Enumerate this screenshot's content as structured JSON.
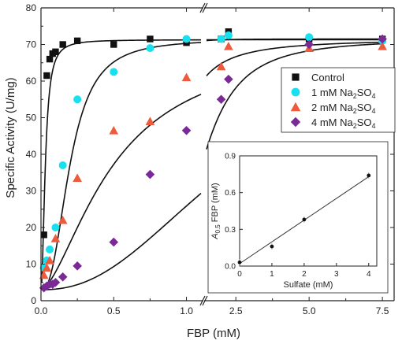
{
  "chart_data": [
    {
      "type": "scatter",
      "xlabel": "FBP (mM)",
      "ylabel": "Specific Activity (U/mg)",
      "ylim": [
        0,
        80
      ],
      "x_break": {
        "left_range": [
          0,
          1.1
        ],
        "right_range": [
          1.5,
          7.9
        ]
      },
      "x_tick_labels": [
        "0.0",
        "0.5",
        "1.0",
        "2.5",
        "5.0",
        "7.5"
      ],
      "y_tick_labels": [
        "0",
        "10",
        "20",
        "30",
        "40",
        "50",
        "60",
        "70",
        "80"
      ],
      "grid": false,
      "legend_position": "right",
      "series": [
        {
          "name": "Control",
          "marker": "square",
          "color": "#111111",
          "points": [
            [
              0.02,
              18
            ],
            [
              0.04,
              61.5
            ],
            [
              0.06,
              66
            ],
            [
              0.08,
              67.5
            ],
            [
              0.1,
              68
            ],
            [
              0.15,
              70
            ],
            [
              0.25,
              71
            ],
            [
              0.5,
              70
            ],
            [
              0.75,
              71.5
            ],
            [
              1.0,
              70.5
            ],
            [
              2.0,
              71.5
            ],
            [
              2.25,
              73.5
            ],
            [
              5.0,
              71.5
            ],
            [
              7.5,
              71.5
            ]
          ],
          "fit": {
            "vmax": 71.3,
            "k": 0.03,
            "n": 2.0,
            "v0": 3
          }
        },
        {
          "name": "1 mM Na2SO4",
          "marker": "circle",
          "color": "#18e0ee",
          "points": [
            [
              0.02,
              9
            ],
            [
              0.04,
              11
            ],
            [
              0.06,
              14
            ],
            [
              0.1,
              20
            ],
            [
              0.15,
              37
            ],
            [
              0.25,
              55
            ],
            [
              0.5,
              62.5
            ],
            [
              0.75,
              69
            ],
            [
              1.0,
              71.5
            ],
            [
              2.0,
              71.5
            ],
            [
              2.25,
              72.5
            ],
            [
              5.0,
              72
            ],
            [
              7.5,
              71
            ]
          ],
          "fit": {
            "vmax": 71.5,
            "k": 0.2,
            "n": 2.5,
            "v0": 3
          }
        },
        {
          "name": "2 mM Na2SO4",
          "marker": "triangle",
          "color": "#ee5a3c",
          "points": [
            [
              0.02,
              7
            ],
            [
              0.04,
              9
            ],
            [
              0.06,
              11
            ],
            [
              0.1,
              17
            ],
            [
              0.15,
              22
            ],
            [
              0.25,
              33.5
            ],
            [
              0.5,
              46.5
            ],
            [
              0.75,
              49
            ],
            [
              1.0,
              61
            ],
            [
              2.0,
              64
            ],
            [
              2.25,
              69.5
            ],
            [
              5.0,
              69
            ],
            [
              7.5,
              69.5
            ]
          ],
          "fit": {
            "vmax": 71.5,
            "k": 0.5,
            "n": 1.6,
            "v0": 3
          }
        },
        {
          "name": "4 mM Na2SO4",
          "marker": "diamond",
          "color": "#7a2a96",
          "points": [
            [
              0.02,
              3.5
            ],
            [
              0.04,
              4
            ],
            [
              0.06,
              4.5
            ],
            [
              0.08,
              4.5
            ],
            [
              0.1,
              5
            ],
            [
              0.15,
              6.5
            ],
            [
              0.25,
              9.5
            ],
            [
              0.5,
              16
            ],
            [
              0.75,
              34.5
            ],
            [
              1.0,
              46.5
            ],
            [
              2.0,
              55
            ],
            [
              2.25,
              60.5
            ],
            [
              5.0,
              70
            ],
            [
              7.5,
              71.5
            ]
          ],
          "fit": {
            "vmax": 71.5,
            "k": 1.35,
            "n": 2.3,
            "v0": 3
          }
        }
      ]
    },
    {
      "type": "scatter",
      "xlabel": "Sulfate (mM)",
      "ylabel_parts": {
        "a": "A",
        "sub": "0.5",
        "rest": " FBP (mM)"
      },
      "xlim": [
        0,
        4.25
      ],
      "ylim": [
        0,
        0.9
      ],
      "x_tick_labels": [
        "0",
        "1",
        "2",
        "3",
        "4"
      ],
      "y_tick_labels": [
        "0.0",
        "0.3",
        "0.6",
        "0.9"
      ],
      "points": [
        [
          0,
          0.03
        ],
        [
          1,
          0.16
        ],
        [
          2,
          0.38
        ],
        [
          4,
          0.74
        ]
      ],
      "fit_line": {
        "x0": 0,
        "y0": 0.02,
        "x1": 4,
        "y1": 0.73
      }
    }
  ],
  "legend": [
    {
      "marker": "square",
      "label": "Control",
      "label_sub": "",
      "label_tail": "",
      "color": "#111111"
    },
    {
      "marker": "circle",
      "label": "1 mM Na",
      "label_sub": "2",
      "label_tail": "SO",
      "label_sub2": "4",
      "color": "#18e0ee"
    },
    {
      "marker": "triangle",
      "label": "2 mM Na",
      "label_sub": "2",
      "label_tail": "SO",
      "label_sub2": "4",
      "color": "#ee5a3c"
    },
    {
      "marker": "diamond",
      "label": "4 mM Na",
      "label_sub": "2",
      "label_tail": "SO",
      "label_sub2": "4",
      "color": "#7a2a96"
    }
  ]
}
